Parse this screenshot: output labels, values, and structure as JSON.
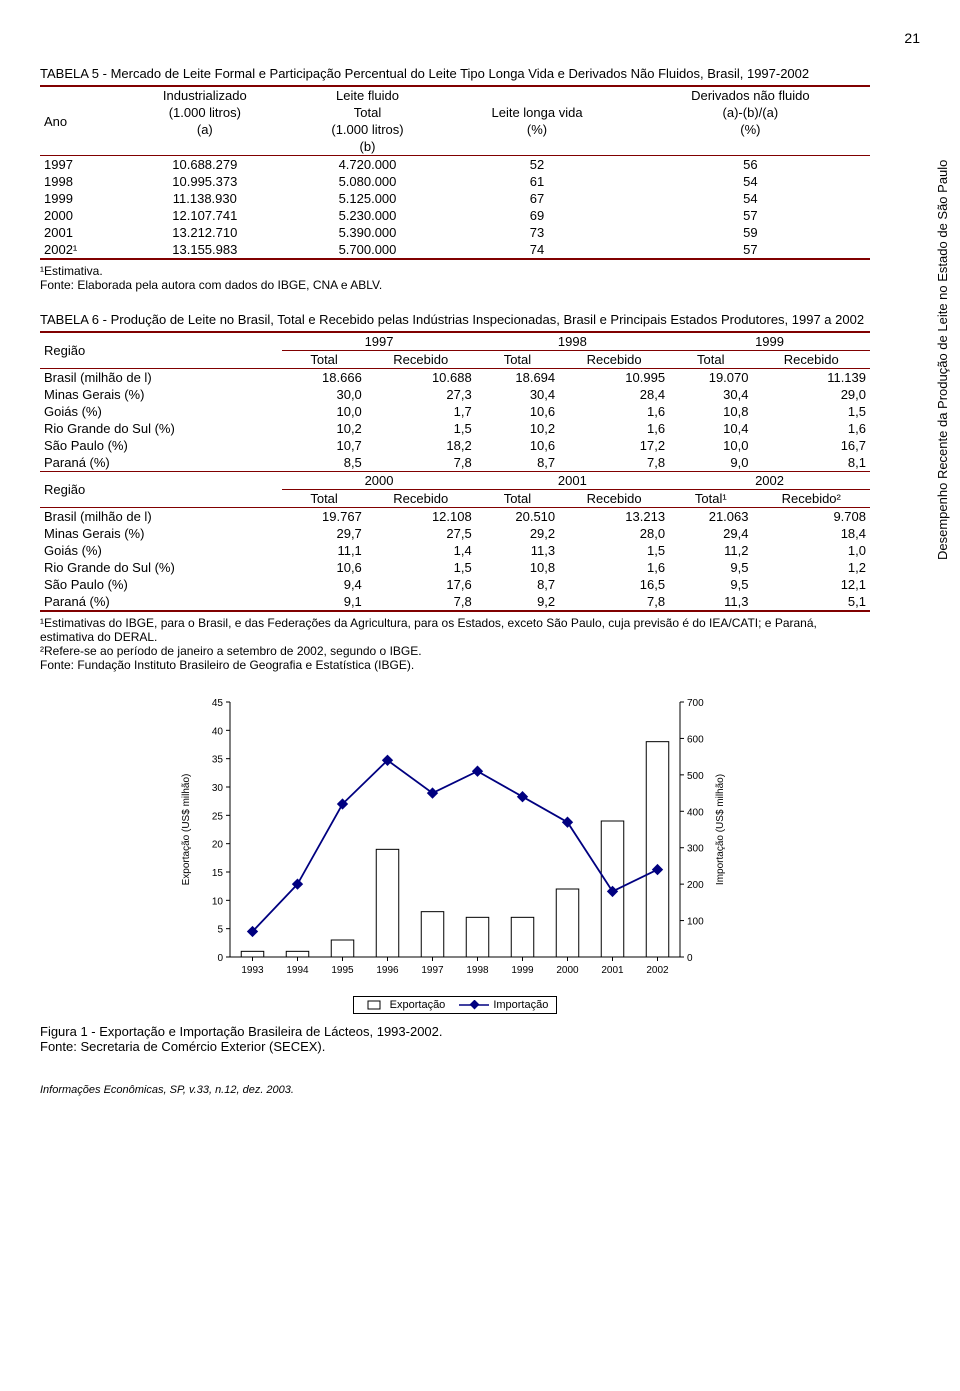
{
  "page_number": "21",
  "side_title": "Desempenho Recente da Produção de Leite no Estado de São Paulo",
  "table5": {
    "title": "TABELA 5 - Mercado de Leite Formal e Participação Percentual do Leite Tipo Longa Vida e Derivados Não Fluidos, Brasil, 1997-2002",
    "col_ano": "Ano",
    "col_ind_l1": "Industrializado",
    "col_ind_l2": "(1.000 litros)",
    "col_ind_l3": "(a)",
    "col_flu_l1": "Leite fluido",
    "col_flu_l2": "Total",
    "col_flu_l3": "(1.000 litros)",
    "col_flu_l4": "(b)",
    "col_llv_l1": "Leite longa vida",
    "col_llv_l2": "(%)",
    "col_der_l1": "Derivados não fluido",
    "col_der_l2": "(a)-(b)/(a)",
    "col_der_l3": "(%)",
    "rows": [
      [
        "1997",
        "10.688.279",
        "4.720.000",
        "52",
        "56"
      ],
      [
        "1998",
        "10.995.373",
        "5.080.000",
        "61",
        "54"
      ],
      [
        "1999",
        "11.138.930",
        "5.125.000",
        "67",
        "54"
      ],
      [
        "2000",
        "12.107.741",
        "5.230.000",
        "69",
        "57"
      ],
      [
        "2001",
        "13.212.710",
        "5.390.000",
        "73",
        "59"
      ],
      [
        "2002¹",
        "13.155.983",
        "5.700.000",
        "74",
        "57"
      ]
    ],
    "footnote1": "¹Estimativa.",
    "footnote2": "Fonte: Elaborada pela autora com dados do IBGE, CNA e ABLV."
  },
  "table6": {
    "title": "TABELA 6 - Produção de Leite no Brasil, Total e Recebido pelas Indústrias Inspecionadas, Brasil  e Principais Estados Produtores, 1997 a 2002",
    "reg_label": "Região",
    "years1": [
      "1997",
      "1998",
      "1999"
    ],
    "years2_labels": [
      "2000",
      "2001",
      "2002"
    ],
    "sub_total": "Total",
    "sub_receb": "Recebido",
    "sub_total1": "Total¹",
    "sub_receb2": "Recebido²",
    "rows1": [
      [
        "Brasil (milhão de l)",
        "18.666",
        "10.688",
        "18.694",
        "10.995",
        "19.070",
        "11.139"
      ],
      [
        "Minas Gerais (%)",
        "30,0",
        "27,3",
        "30,4",
        "28,4",
        "30,4",
        "29,0"
      ],
      [
        "Goiás (%)",
        "10,0",
        "1,7",
        "10,6",
        "1,6",
        "10,8",
        "1,5"
      ],
      [
        "Rio Grande do Sul (%)",
        "10,2",
        "1,5",
        "10,2",
        "1,6",
        "10,4",
        "1,6"
      ],
      [
        "São Paulo (%)",
        "10,7",
        "18,2",
        "10,6",
        "17,2",
        "10,0",
        "16,7"
      ],
      [
        "Paraná (%)",
        "8,5",
        "7,8",
        "8,7",
        "7,8",
        "9,0",
        "8,1"
      ]
    ],
    "rows2": [
      [
        "Brasil (milhão de l)",
        "19.767",
        "12.108",
        "20.510",
        "13.213",
        "21.063",
        "9.708"
      ],
      [
        "Minas Gerais (%)",
        "29,7",
        "27,5",
        "29,2",
        "28,0",
        "29,4",
        "18,4"
      ],
      [
        "Goiás (%)",
        "11,1",
        "1,4",
        "11,3",
        "1,5",
        "11,2",
        "1,0"
      ],
      [
        "Rio Grande do Sul (%)",
        "10,6",
        "1,5",
        "10,8",
        "1,6",
        "9,5",
        "1,2"
      ],
      [
        "São Paulo (%)",
        "9,4",
        "17,6",
        "8,7",
        "16,5",
        "9,5",
        "12,1"
      ],
      [
        "Paraná (%)",
        "9,1",
        "7,8",
        "9,2",
        "7,8",
        "11,3",
        "5,1"
      ]
    ],
    "footnote1": "¹Estimativas do IBGE, para o Brasil, e das Federações da Agricultura, para os Estados, exceto São Paulo, cuja previsão é do IEA/CATI; e Paraná, estimativa do DERAL.",
    "footnote2": "²Refere-se ao período de janeiro a setembro de 2002, segundo o IBGE.",
    "footnote3": "Fonte: Fundação Instituto Brasileiro de Geografia e Estatística (IBGE)."
  },
  "chart": {
    "type": "combo-bar-line",
    "categories": [
      "1993",
      "1994",
      "1995",
      "1996",
      "1997",
      "1998",
      "1999",
      "2000",
      "2001",
      "2002"
    ],
    "bar_values": [
      1,
      1,
      3,
      19,
      8,
      7,
      7,
      12,
      24,
      38
    ],
    "line_values": [
      70,
      200,
      420,
      540,
      450,
      510,
      440,
      370,
      180,
      240
    ],
    "y_left": {
      "label": "Exportação (US$ milhão)",
      "min": 0,
      "max": 45,
      "step": 5
    },
    "y_right": {
      "label": "Importação (US$ milhão)",
      "min": 0,
      "max": 700,
      "step": 100
    },
    "bar_color": "#ffffff",
    "bar_stroke": "#000000",
    "line_color": "#000080",
    "marker_color": "#000080",
    "grid": false,
    "legend_export": "Exportação",
    "legend_import": "Importação"
  },
  "figure_caption_l1": "Figura 1 - Exportação e Importação Brasileira de Lácteos, 1993-2002.",
  "figure_caption_l2": "Fonte: Secretaria de Comércio Exterior (SECEX).",
  "bottom_note": "Informações Econômicas, SP, v.33, n.12, dez. 2003."
}
